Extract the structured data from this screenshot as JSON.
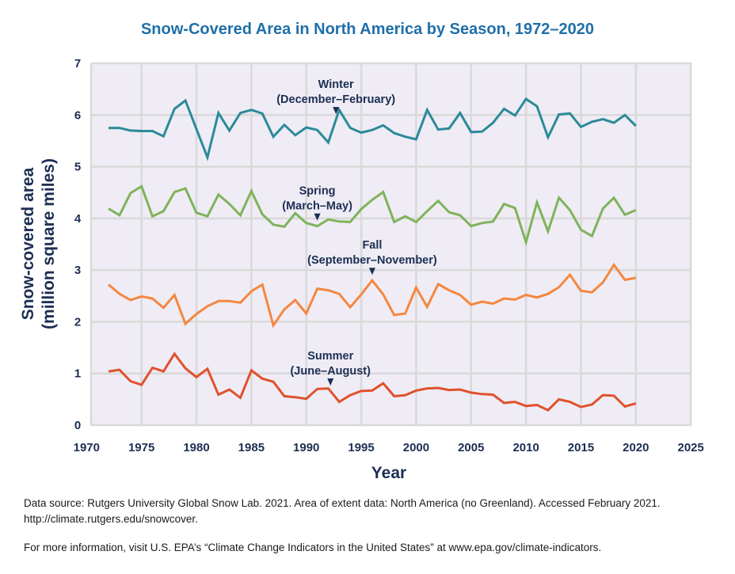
{
  "chart_data": {
    "type": "line",
    "title": "Snow-Covered Area in North America by Season, 1972–2020",
    "xlabel": "Year",
    "ylabel_lines": [
      "Snow-covered area",
      "(million square miles)"
    ],
    "xlim": [
      1970,
      2025
    ],
    "ylim": [
      0,
      7
    ],
    "xticks": [
      1970,
      1975,
      1980,
      1985,
      1990,
      1995,
      2000,
      2005,
      2010,
      2015,
      2020,
      2025
    ],
    "yticks": [
      0,
      1,
      2,
      3,
      4,
      5,
      6,
      7
    ],
    "grid": true,
    "background_color": "#efecf5",
    "grid_color": "#d9d9d9",
    "x": [
      1972,
      1973,
      1974,
      1975,
      1976,
      1977,
      1978,
      1979,
      1980,
      1981,
      1982,
      1983,
      1984,
      1985,
      1986,
      1987,
      1988,
      1989,
      1990,
      1991,
      1992,
      1993,
      1994,
      1995,
      1996,
      1997,
      1998,
      1999,
      2000,
      2001,
      2002,
      2003,
      2004,
      2005,
      2006,
      2007,
      2008,
      2009,
      2010,
      2011,
      2012,
      2013,
      2014,
      2015,
      2016,
      2017,
      2018,
      2019,
      2020
    ],
    "series": [
      {
        "name": "Winter",
        "annotation": [
          "Winter",
          "(December–February)"
        ],
        "annotation_year": 1992.7,
        "color": "#2b8a99",
        "values": [
          5.75,
          5.75,
          5.7,
          5.69,
          5.69,
          5.59,
          6.12,
          6.28,
          5.73,
          5.18,
          6.04,
          5.7,
          6.04,
          6.1,
          6.03,
          5.58,
          5.81,
          5.61,
          5.76,
          5.71,
          5.47,
          6.1,
          5.75,
          5.66,
          5.71,
          5.8,
          5.65,
          5.58,
          5.53,
          6.1,
          5.72,
          5.74,
          6.04,
          5.67,
          5.68,
          5.85,
          6.12,
          5.99,
          6.31,
          6.17,
          5.57,
          6.01,
          6.03,
          5.77,
          5.87,
          5.92,
          5.85,
          6.0,
          5.79
        ]
      },
      {
        "name": "Spring",
        "annotation": [
          "Spring",
          "(March–May)"
        ],
        "annotation_year": 1991.0,
        "color": "#7fb35a",
        "values": [
          4.19,
          4.06,
          4.49,
          4.62,
          4.04,
          4.14,
          4.51,
          4.58,
          4.11,
          4.04,
          4.46,
          4.28,
          4.06,
          4.53,
          4.08,
          3.88,
          3.84,
          4.1,
          3.91,
          3.85,
          3.98,
          3.94,
          3.93,
          4.18,
          4.36,
          4.51,
          3.93,
          4.04,
          3.93,
          4.14,
          4.34,
          4.12,
          4.06,
          3.85,
          3.91,
          3.94,
          4.28,
          4.2,
          3.54,
          4.31,
          3.75,
          4.4,
          4.16,
          3.78,
          3.66,
          4.19,
          4.4,
          4.07,
          4.16
        ]
      },
      {
        "name": "Fall",
        "annotation": [
          "Fall",
          "(September–November)"
        ],
        "annotation_year": 1996.0,
        "color": "#f5873f",
        "values": [
          2.72,
          2.54,
          2.42,
          2.49,
          2.45,
          2.27,
          2.52,
          1.96,
          2.15,
          2.3,
          2.4,
          2.4,
          2.37,
          2.59,
          2.72,
          1.93,
          2.24,
          2.42,
          2.16,
          2.64,
          2.61,
          2.54,
          2.28,
          2.53,
          2.8,
          2.53,
          2.13,
          2.16,
          2.66,
          2.29,
          2.73,
          2.61,
          2.52,
          2.33,
          2.39,
          2.35,
          2.45,
          2.43,
          2.52,
          2.47,
          2.54,
          2.67,
          2.91,
          2.6,
          2.57,
          2.76,
          3.1,
          2.81,
          2.85
        ]
      },
      {
        "name": "Summer",
        "annotation": [
          "Summer",
          "(June–August)"
        ],
        "annotation_year": 1992.2,
        "color": "#e0512c",
        "values": [
          1.04,
          1.07,
          0.85,
          0.78,
          1.11,
          1.04,
          1.38,
          1.1,
          0.93,
          1.09,
          0.59,
          0.69,
          0.53,
          1.06,
          0.9,
          0.84,
          0.56,
          0.54,
          0.51,
          0.7,
          0.71,
          0.45,
          0.58,
          0.66,
          0.67,
          0.81,
          0.56,
          0.58,
          0.67,
          0.71,
          0.72,
          0.68,
          0.69,
          0.63,
          0.6,
          0.59,
          0.43,
          0.45,
          0.37,
          0.39,
          0.29,
          0.5,
          0.45,
          0.35,
          0.4,
          0.58,
          0.57,
          0.36,
          0.42
        ]
      }
    ]
  },
  "footer": {
    "source_line": "Data source: Rutgers University Global Snow Lab. 2021. Area of extent data: North America (no Greenland). Accessed February 2021. http://climate.rutgers.edu/snowcover.",
    "more_info_line": "For more information, visit U.S. EPA’s “Climate Change Indicators in the United States” at www.epa.gov/climate-indicators."
  }
}
